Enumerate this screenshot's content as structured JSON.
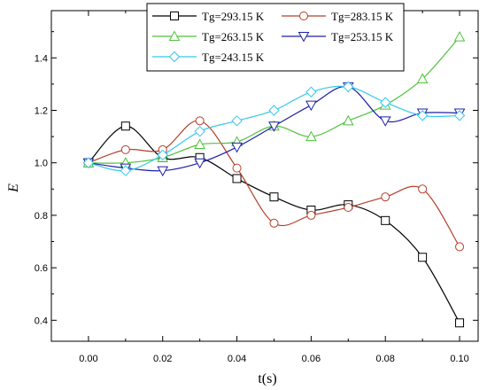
{
  "chart_data": {
    "type": "line",
    "xlabel": "t(s)",
    "ylabel": "E",
    "xlim": [
      -0.01,
      0.105
    ],
    "ylim": [
      0.32,
      1.58
    ],
    "xticks": [
      0.0,
      0.02,
      0.04,
      0.06,
      0.08,
      0.1
    ],
    "xtick_labels": [
      "0.00",
      "0.02",
      "0.04",
      "0.06",
      "0.08",
      "0.10"
    ],
    "yticks": [
      0.4,
      0.6,
      0.8,
      1.0,
      1.2,
      1.4
    ],
    "ytick_labels": [
      "0.4",
      "0.6",
      "0.8",
      "1.0",
      "1.2",
      "1.4"
    ],
    "x": [
      0.0,
      0.01,
      0.02,
      0.03,
      0.04,
      0.05,
      0.06,
      0.07,
      0.08,
      0.09,
      0.1
    ],
    "legend_position": "top-right",
    "grid": false,
    "series": [
      {
        "name": "Tg=293.15 K",
        "color": "#000000",
        "marker": "square",
        "values": [
          1.0,
          1.14,
          1.02,
          1.02,
          0.94,
          0.87,
          0.82,
          0.84,
          0.78,
          0.64,
          0.39
        ]
      },
      {
        "name": "Tg=283.15 K",
        "color": "#b5402a",
        "marker": "circle",
        "values": [
          1.0,
          1.05,
          1.05,
          1.16,
          0.98,
          0.77,
          0.8,
          0.83,
          0.87,
          0.9,
          0.68
        ]
      },
      {
        "name": "Tg=263.15 K",
        "color": "#4fc23a",
        "marker": "triangle-up",
        "values": [
          1.0,
          1.0,
          1.02,
          1.07,
          1.08,
          1.14,
          1.1,
          1.16,
          1.22,
          1.32,
          1.48
        ]
      },
      {
        "name": "Tg=253.15 K",
        "color": "#1f1fa8",
        "marker": "triangle-down",
        "values": [
          1.0,
          0.98,
          0.97,
          1.0,
          1.06,
          1.14,
          1.22,
          1.29,
          1.16,
          1.19,
          1.19
        ]
      },
      {
        "name": "Tg=243.15 K",
        "color": "#35c8ea",
        "marker": "diamond",
        "values": [
          1.0,
          0.97,
          1.03,
          1.12,
          1.16,
          1.2,
          1.27,
          1.29,
          1.23,
          1.18,
          1.18
        ]
      }
    ]
  }
}
